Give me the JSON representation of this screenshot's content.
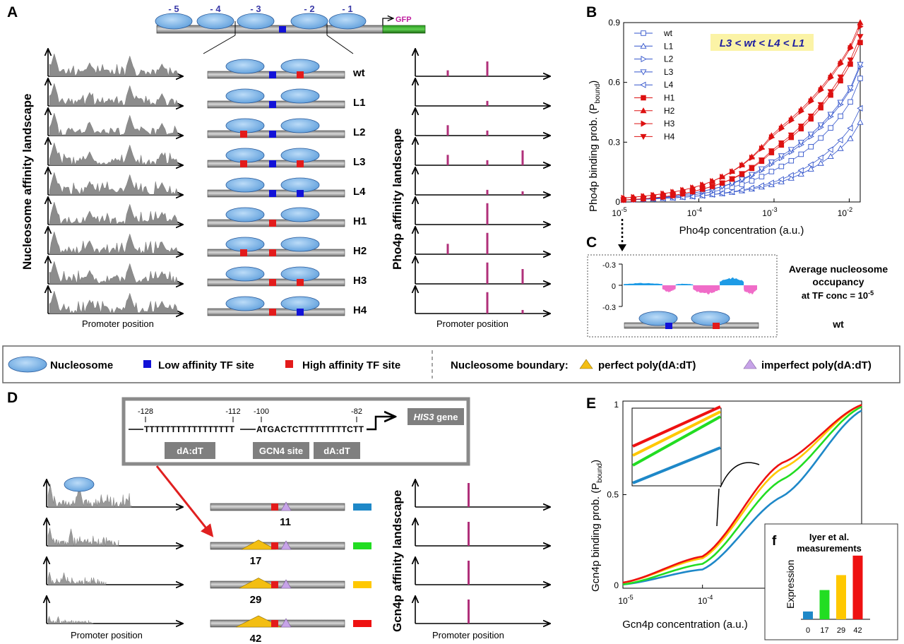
{
  "panels": {
    "A": "A",
    "B": "B",
    "C": "C",
    "D": "D",
    "E": "E",
    "f": "f"
  },
  "panelA": {
    "nuc_numbers": [
      "- 5",
      "- 4",
      "- 3",
      "- 2",
      "- 1"
    ],
    "gfp": "GFP",
    "ylabel_left": "Nucleosome affinity landscape",
    "ylabel_right": "Pho4p affinity landscape",
    "xlabel_left": "Promoter position",
    "xlabel_right": "Promoter position",
    "variants": [
      {
        "name": "wt",
        "sites": [
          "low",
          "high"
        ],
        "pho4p": [
          0.2,
          0.5
        ]
      },
      {
        "name": "L1",
        "sites": [
          "low"
        ],
        "pho4p": [
          0,
          0.17
        ]
      },
      {
        "name": "L2",
        "sites": [
          "high",
          "low"
        ],
        "pho4p": [
          0.35,
          0.17
        ]
      },
      {
        "name": "L3",
        "sites": [
          "high",
          "low",
          "high"
        ],
        "pho4p": [
          0.35,
          0.17,
          0.5
        ]
      },
      {
        "name": "L4",
        "sites": [
          "low",
          "low"
        ],
        "pho4p": [
          0,
          0.17,
          0.12
        ]
      },
      {
        "name": "H1",
        "sites": [
          "high"
        ],
        "pho4p": [
          0,
          0.72
        ]
      },
      {
        "name": "H2",
        "sites": [
          "high",
          "high"
        ],
        "pho4p": [
          0.35,
          0.72
        ]
      },
      {
        "name": "H3",
        "sites": [
          "high",
          "high"
        ],
        "pho4p": [
          0,
          0.72,
          0.5
        ]
      },
      {
        "name": "H4",
        "sites": [
          "high",
          "low"
        ],
        "pho4p": [
          0,
          0.72,
          0.12
        ]
      }
    ]
  },
  "panelB": {
    "annotation": "L3 < wt < L4 < L1",
    "ylabel_main": "Pho4p  binding prob. (P",
    "ylabel_sub": "bound",
    "ylabel_end": ")",
    "xlabel": "Pho4p concentration (a.u.)",
    "legend": [
      "wt",
      "L1",
      "L2",
      "L3",
      "L4",
      "H1",
      "H2",
      "H3",
      "H4"
    ]
  },
  "chart_data": [
    {
      "type": "line",
      "panel": "B",
      "xlabel": "Pho4p concentration (a.u.)",
      "ylabel": "Pho4p  binding prob. (Pbound)",
      "x_scale": "log",
      "xlim": [
        1e-05,
        0.014
      ],
      "ylim": [
        0,
        0.9
      ],
      "x_ticks": [
        "10-5",
        "10-4",
        "10-3",
        "10-2"
      ],
      "y_ticks": [
        "0",
        "0.3",
        "0.6",
        "0.9"
      ],
      "legend_position": "top-left",
      "series": [
        {
          "name": "wt",
          "color": "#3355cc",
          "marker": "square-open",
          "x": [
            1e-05,
            0.0001,
            0.001,
            0.01,
            0.014
          ],
          "y": [
            0.01,
            0.04,
            0.16,
            0.49,
            0.62
          ]
        },
        {
          "name": "L1",
          "color": "#3355cc",
          "marker": "triangle-up-open",
          "x": [
            1e-05,
            0.0001,
            0.001,
            0.01,
            0.014
          ],
          "y": [
            0.01,
            0.03,
            0.09,
            0.31,
            0.4
          ]
        },
        {
          "name": "L2",
          "color": "#3355cc",
          "marker": "triangle-right-open",
          "x": [
            1e-05,
            0.0001,
            0.001,
            0.01,
            0.014
          ],
          "y": [
            0.01,
            0.05,
            0.2,
            0.55,
            0.68
          ]
        },
        {
          "name": "L3",
          "color": "#3355cc",
          "marker": "triangle-down-open",
          "x": [
            1e-05,
            0.0001,
            0.001,
            0.01,
            0.014
          ],
          "y": [
            0.01,
            0.05,
            0.21,
            0.56,
            0.69
          ]
        },
        {
          "name": "L4",
          "color": "#3355cc",
          "marker": "triangle-left-open",
          "x": [
            1e-05,
            0.0001,
            0.001,
            0.01,
            0.014
          ],
          "y": [
            0.01,
            0.03,
            0.1,
            0.36,
            0.47
          ]
        },
        {
          "name": "H1",
          "color": "#dd1111",
          "marker": "square",
          "x": [
            1e-05,
            0.0001,
            0.001,
            0.01,
            0.014
          ],
          "y": [
            0.01,
            0.06,
            0.26,
            0.68,
            0.8
          ]
        },
        {
          "name": "H2",
          "color": "#dd1111",
          "marker": "triangle-up",
          "x": [
            1e-05,
            0.0001,
            0.001,
            0.01,
            0.014
          ],
          "y": [
            0.02,
            0.08,
            0.35,
            0.77,
            0.9
          ]
        },
        {
          "name": "H3",
          "color": "#dd1111",
          "marker": "triangle-right",
          "x": [
            1e-05,
            0.0001,
            0.001,
            0.01,
            0.014
          ],
          "y": [
            0.02,
            0.08,
            0.34,
            0.76,
            0.88
          ]
        },
        {
          "name": "H4",
          "color": "#dd1111",
          "marker": "triangle-down",
          "x": [
            1e-05,
            0.0001,
            0.001,
            0.01,
            0.014
          ],
          "y": [
            0.01,
            0.06,
            0.27,
            0.7,
            0.83
          ]
        }
      ]
    },
    {
      "type": "area",
      "panel": "C",
      "ylim": [
        -0.3,
        0.3
      ],
      "y_ticks": [
        "-0.3",
        "0",
        "-0.3"
      ],
      "segments": [
        {
          "color": "#1e9be6",
          "sign": "positive",
          "x_range": [
            0,
            0.29
          ],
          "peak": 0.03
        },
        {
          "color": "#f06cc8",
          "sign": "negative",
          "x_range": [
            0.29,
            0.39
          ],
          "peak": -0.09
        },
        {
          "color": "#1e9be6",
          "sign": "positive",
          "x_range": [
            0.39,
            0.52
          ],
          "peak": 0.02
        },
        {
          "color": "#f06cc8",
          "sign": "negative",
          "x_range": [
            0.52,
            0.72
          ],
          "peak": -0.12
        },
        {
          "color": "#1e9be6",
          "sign": "positive",
          "x_range": [
            0.72,
            0.9
          ],
          "peak": 0.1
        },
        {
          "color": "#f06cc8",
          "sign": "negative",
          "x_range": [
            0.9,
            1.0
          ],
          "peak": -0.12
        }
      ]
    },
    {
      "type": "line",
      "panel": "E",
      "xlabel": "Gcn4p concentration (a.u.)",
      "ylabel": "Gcn4p binding prob. (Pbound)",
      "x_scale": "log",
      "xlim": [
        1e-05,
        0.01
      ],
      "ylim": [
        0,
        1
      ],
      "x_ticks": [
        "10-5",
        "10-4"
      ],
      "y_ticks": [
        "0",
        "0.5",
        "1"
      ],
      "series": [
        {
          "name": "11",
          "color": "#1e88c8",
          "x": [
            1e-05,
            0.0001,
            0.001,
            0.01
          ],
          "y": [
            0.02,
            0.1,
            0.49,
            0.95
          ]
        },
        {
          "name": "17",
          "color": "#22dd22",
          "x": [
            1e-05,
            0.0001,
            0.001,
            0.01
          ],
          "y": [
            0.02,
            0.13,
            0.58,
            0.97
          ]
        },
        {
          "name": "29",
          "color": "#ffc800",
          "x": [
            1e-05,
            0.0001,
            0.001,
            0.01
          ],
          "y": [
            0.03,
            0.16,
            0.64,
            0.98
          ]
        },
        {
          "name": "42",
          "color": "#ee1111",
          "x": [
            1e-05,
            0.0001,
            0.001,
            0.01
          ],
          "y": [
            0.03,
            0.17,
            0.67,
            0.98
          ]
        }
      ]
    },
    {
      "type": "bar",
      "panel": "f",
      "title": "Iyer et al. measurements",
      "ylabel": "Expression",
      "categories": [
        "0",
        "17",
        "29",
        "42"
      ],
      "values": [
        0.12,
        0.45,
        0.68,
        0.98
      ],
      "colors": [
        "#1e88c8",
        "#22dd22",
        "#ffc800",
        "#ee1111"
      ]
    }
  ],
  "panelC": {
    "title_lines": [
      "Average nucleosome",
      "occupancy"
    ],
    "subtitle": "at TF conc = 10",
    "subtitle_exp": "-5",
    "label": "wt"
  },
  "legend": {
    "nucleosome": "Nucleosome",
    "low_site": "Low affinity TF site",
    "high_site": "High affinity TF site",
    "boundary": "Nucleosome boundary:",
    "perfect": "perfect  poly(dA:dT)",
    "imperfect": "imperfect  poly(dA:dT)"
  },
  "panelD": {
    "coord_128": "-128",
    "coord_112": "-112",
    "coord_100": "-100",
    "coord_82": "-82",
    "polyT": "TTTTTTTTTTTTTTTTT",
    "gcn4_seq": "ATGACTCTTTTTTTTTCTT",
    "his3_italic": "HIS3",
    "his3_rest": " gene",
    "box_dadt1": "dA:dT",
    "box_gcn4": "GCN4 site",
    "box_dadt2": "dA:dT",
    "ylabel_right": "Gcn4p affinity landscape",
    "xlabel_left": "Promoter position",
    "xlabel_right": "Promoter position",
    "variants": [
      {
        "label": "11",
        "color": "#1e88c8",
        "triangle_scale": 0
      },
      {
        "label": "17",
        "color": "#22dd22",
        "triangle_scale": 0.55
      },
      {
        "label": "29",
        "color": "#ffc800",
        "triangle_scale": 0.75
      },
      {
        "label": "42",
        "color": "#ee1111",
        "triangle_scale": 1
      }
    ]
  },
  "panelE": {
    "ylabel_main": "Gcn4p binding prob. (P",
    "ylabel_sub": "bound",
    "ylabel_end": ")",
    "xlabel": "Gcn4p concentration (a.u.)",
    "inset_title_lines": [
      "Iyer et al.",
      "measurements"
    ],
    "inset_ylabel": "Expression",
    "inset_ticks": [
      "0",
      "17",
      "29",
      "42"
    ]
  },
  "colors": {
    "nucleosome": "#7fb5e8",
    "low_site": "#1212d8",
    "high_site": "#e31b1b",
    "pho4p_bar": "#b0307a",
    "gfp": "#1c7a14",
    "gfp_text": "#c020a0",
    "nuc_number_text": "#3a3aa8"
  }
}
